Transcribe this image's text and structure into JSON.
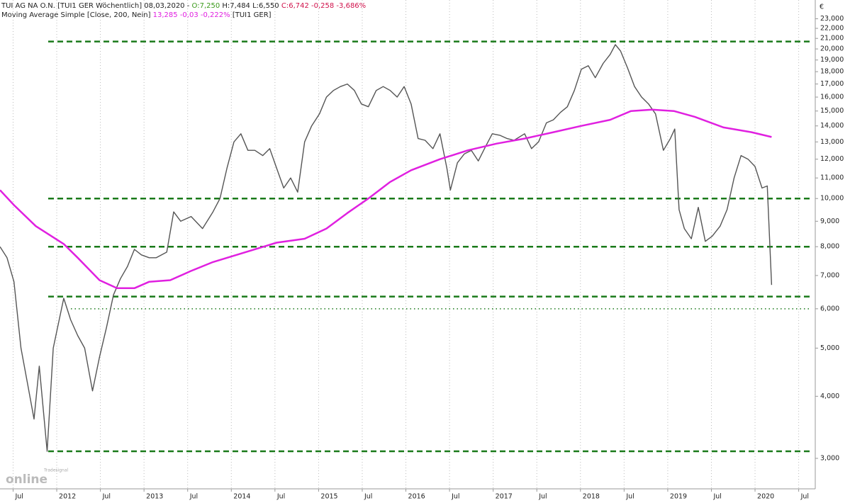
{
  "chart_data": {
    "type": "line",
    "header": {
      "instrument": "TUI AG NA O.N. [TUI1 GER  Wöchentlich] 08,03,2020 -",
      "open": "O:7,250",
      "high_low": "H:7,484 L:6,550",
      "close": "C:6,742 -0,258 -3,686%",
      "indicator": "Moving Average Simple [Close, 200, Nein]",
      "indicator_value": "13,285 -0,03 -0,222%",
      "indicator_symbol": "[TUI1 GER]"
    },
    "currency": "€",
    "logo": {
      "small": "Tradesignal",
      "big": "online"
    },
    "log_scale": true,
    "grid": true,
    "xlim": [
      2011.35,
      2020.69
    ],
    "ylim": [
      2.605,
      25.09
    ],
    "xticks": [
      {
        "value": 2011.5,
        "label": "Jul"
      },
      {
        "value": 2012,
        "label": "2012"
      },
      {
        "value": 2012.5,
        "label": "Jul"
      },
      {
        "value": 2013,
        "label": "2013"
      },
      {
        "value": 2013.5,
        "label": "Jul"
      },
      {
        "value": 2014,
        "label": "2014"
      },
      {
        "value": 2014.5,
        "label": "Jul"
      },
      {
        "value": 2015,
        "label": "2015"
      },
      {
        "value": 2015.5,
        "label": "Jul"
      },
      {
        "value": 2016,
        "label": "2016"
      },
      {
        "value": 2016.5,
        "label": "Jul"
      },
      {
        "value": 2017,
        "label": "2017"
      },
      {
        "value": 2017.5,
        "label": "Jul"
      },
      {
        "value": 2018,
        "label": "2018"
      },
      {
        "value": 2018.5,
        "label": "Jul"
      },
      {
        "value": 2019,
        "label": "2019"
      },
      {
        "value": 2019.5,
        "label": "Jul"
      },
      {
        "value": 2020,
        "label": "2020"
      },
      {
        "value": 2020.5,
        "label": "Jul"
      }
    ],
    "yticks": [
      {
        "value": 3,
        "label": "3,000"
      },
      {
        "value": 4,
        "label": "4,000"
      },
      {
        "value": 5,
        "label": "5,000"
      },
      {
        "value": 6,
        "label": "6,000"
      },
      {
        "value": 7,
        "label": "7,000"
      },
      {
        "value": 8,
        "label": "8,000"
      },
      {
        "value": 9,
        "label": "9,000"
      },
      {
        "value": 10,
        "label": "10,000"
      },
      {
        "value": 11,
        "label": "11,000"
      },
      {
        "value": 12,
        "label": "12,000"
      },
      {
        "value": 13,
        "label": "13,000"
      },
      {
        "value": 14,
        "label": "14,000"
      },
      {
        "value": 15,
        "label": "15,000"
      },
      {
        "value": 16,
        "label": "16,000"
      },
      {
        "value": 17,
        "label": "17,000"
      },
      {
        "value": 18,
        "label": "18,000"
      },
      {
        "value": 19,
        "label": "19,000"
      },
      {
        "value": 20,
        "label": "20,000"
      },
      {
        "value": 21,
        "label": "21,000"
      },
      {
        "value": 22,
        "label": "22,000"
      },
      {
        "value": 23,
        "label": "23,000"
      }
    ],
    "support_levels": [
      20.7,
      10.0,
      8.0,
      6.35,
      3.1
    ],
    "support_color": "#1a7a1a",
    "dotted_level": 6.0,
    "series": [
      {
        "color": "#555555",
        "x": [
          2011.35,
          2011.43,
          2011.51,
          2011.59,
          2011.67,
          2011.74,
          2011.8,
          2011.89,
          2011.96,
          2012.08,
          2012.16,
          2012.24,
          2012.32,
          2012.41,
          2012.49,
          2012.57,
          2012.65,
          2012.73,
          2012.81,
          2012.89,
          2012.97,
          2013.06,
          2013.14,
          2013.26,
          2013.34,
          2013.42,
          2013.54,
          2013.67,
          2013.79,
          2013.87,
          2013.95,
          2014.03,
          2014.11,
          2014.19,
          2014.27,
          2014.36,
          2014.44,
          2014.52,
          2014.6,
          2014.68,
          2014.76,
          2014.84,
          2014.92,
          2015.01,
          2015.09,
          2015.17,
          2015.25,
          2015.33,
          2015.41,
          2015.49,
          2015.57,
          2015.66,
          2015.74,
          2015.82,
          2015.9,
          2015.98,
          2016.06,
          2016.14,
          2016.22,
          2016.31,
          2016.39,
          2016.47,
          2016.51,
          2016.59,
          2016.67,
          2016.75,
          2016.83,
          2016.91,
          2016.99,
          2017.08,
          2017.16,
          2017.24,
          2017.36,
          2017.44,
          2017.52,
          2017.61,
          2017.69,
          2017.77,
          2017.85,
          2017.93,
          2018.01,
          2018.09,
          2018.17,
          2018.26,
          2018.34,
          2018.4,
          2018.46,
          2018.54,
          2018.62,
          2018.7,
          2018.78,
          2018.86,
          2018.95,
          2019.03,
          2019.08,
          2019.13,
          2019.19,
          2019.27,
          2019.35,
          2019.43,
          2019.51,
          2019.6,
          2019.68,
          2019.76,
          2019.84,
          2019.92,
          2020.0,
          2020.08,
          2020.14,
          2020.19
        ],
        "values": [
          8.0,
          7.6,
          6.8,
          5.0,
          4.2,
          3.6,
          4.6,
          3.1,
          5.0,
          6.3,
          5.7,
          5.3,
          5.0,
          4.1,
          4.8,
          5.5,
          6.4,
          6.9,
          7.3,
          7.9,
          7.7,
          7.6,
          7.6,
          7.8,
          9.4,
          9.0,
          9.2,
          8.7,
          9.4,
          10.0,
          11.5,
          13.0,
          13.5,
          12.5,
          12.5,
          12.2,
          12.6,
          11.5,
          10.5,
          11.0,
          10.3,
          13.0,
          14.0,
          14.8,
          16.0,
          16.5,
          16.8,
          17.0,
          16.5,
          15.5,
          15.3,
          16.5,
          16.8,
          16.5,
          16.0,
          16.8,
          15.5,
          13.2,
          13.1,
          12.6,
          13.5,
          11.5,
          10.4,
          11.8,
          12.3,
          12.5,
          11.9,
          12.7,
          13.5,
          13.4,
          13.2,
          13.1,
          13.5,
          12.6,
          13.0,
          14.2,
          14.4,
          14.9,
          15.3,
          16.5,
          18.2,
          18.5,
          17.5,
          18.7,
          19.5,
          20.4,
          19.8,
          18.3,
          16.8,
          16.0,
          15.5,
          14.8,
          12.5,
          13.2,
          13.8,
          9.5,
          8.7,
          8.3,
          9.6,
          8.2,
          8.4,
          8.8,
          9.5,
          11.0,
          12.2,
          12.0,
          11.6,
          10.5,
          10.6,
          6.7
        ]
      },
      {
        "color": "#e020e0",
        "x": [
          2011.35,
          2011.51,
          2011.76,
          2012.08,
          2012.24,
          2012.49,
          2012.69,
          2012.89,
          2013.06,
          2013.3,
          2013.54,
          2013.79,
          2014.11,
          2014.52,
          2014.84,
          2015.09,
          2015.33,
          2015.57,
          2015.82,
          2016.06,
          2016.39,
          2016.71,
          2017.04,
          2017.36,
          2017.69,
          2018.01,
          2018.34,
          2018.58,
          2018.82,
          2019.07,
          2019.31,
          2019.64,
          2019.96,
          2020.19
        ],
        "values": [
          10.4,
          9.7,
          8.8,
          8.1,
          7.6,
          6.85,
          6.6,
          6.6,
          6.8,
          6.85,
          7.15,
          7.45,
          7.75,
          8.15,
          8.3,
          8.7,
          9.35,
          10.0,
          10.8,
          11.4,
          12.0,
          12.5,
          12.9,
          13.2,
          13.6,
          14.0,
          14.4,
          15.0,
          15.1,
          15.0,
          14.6,
          13.9,
          13.6,
          13.3
        ]
      }
    ]
  }
}
